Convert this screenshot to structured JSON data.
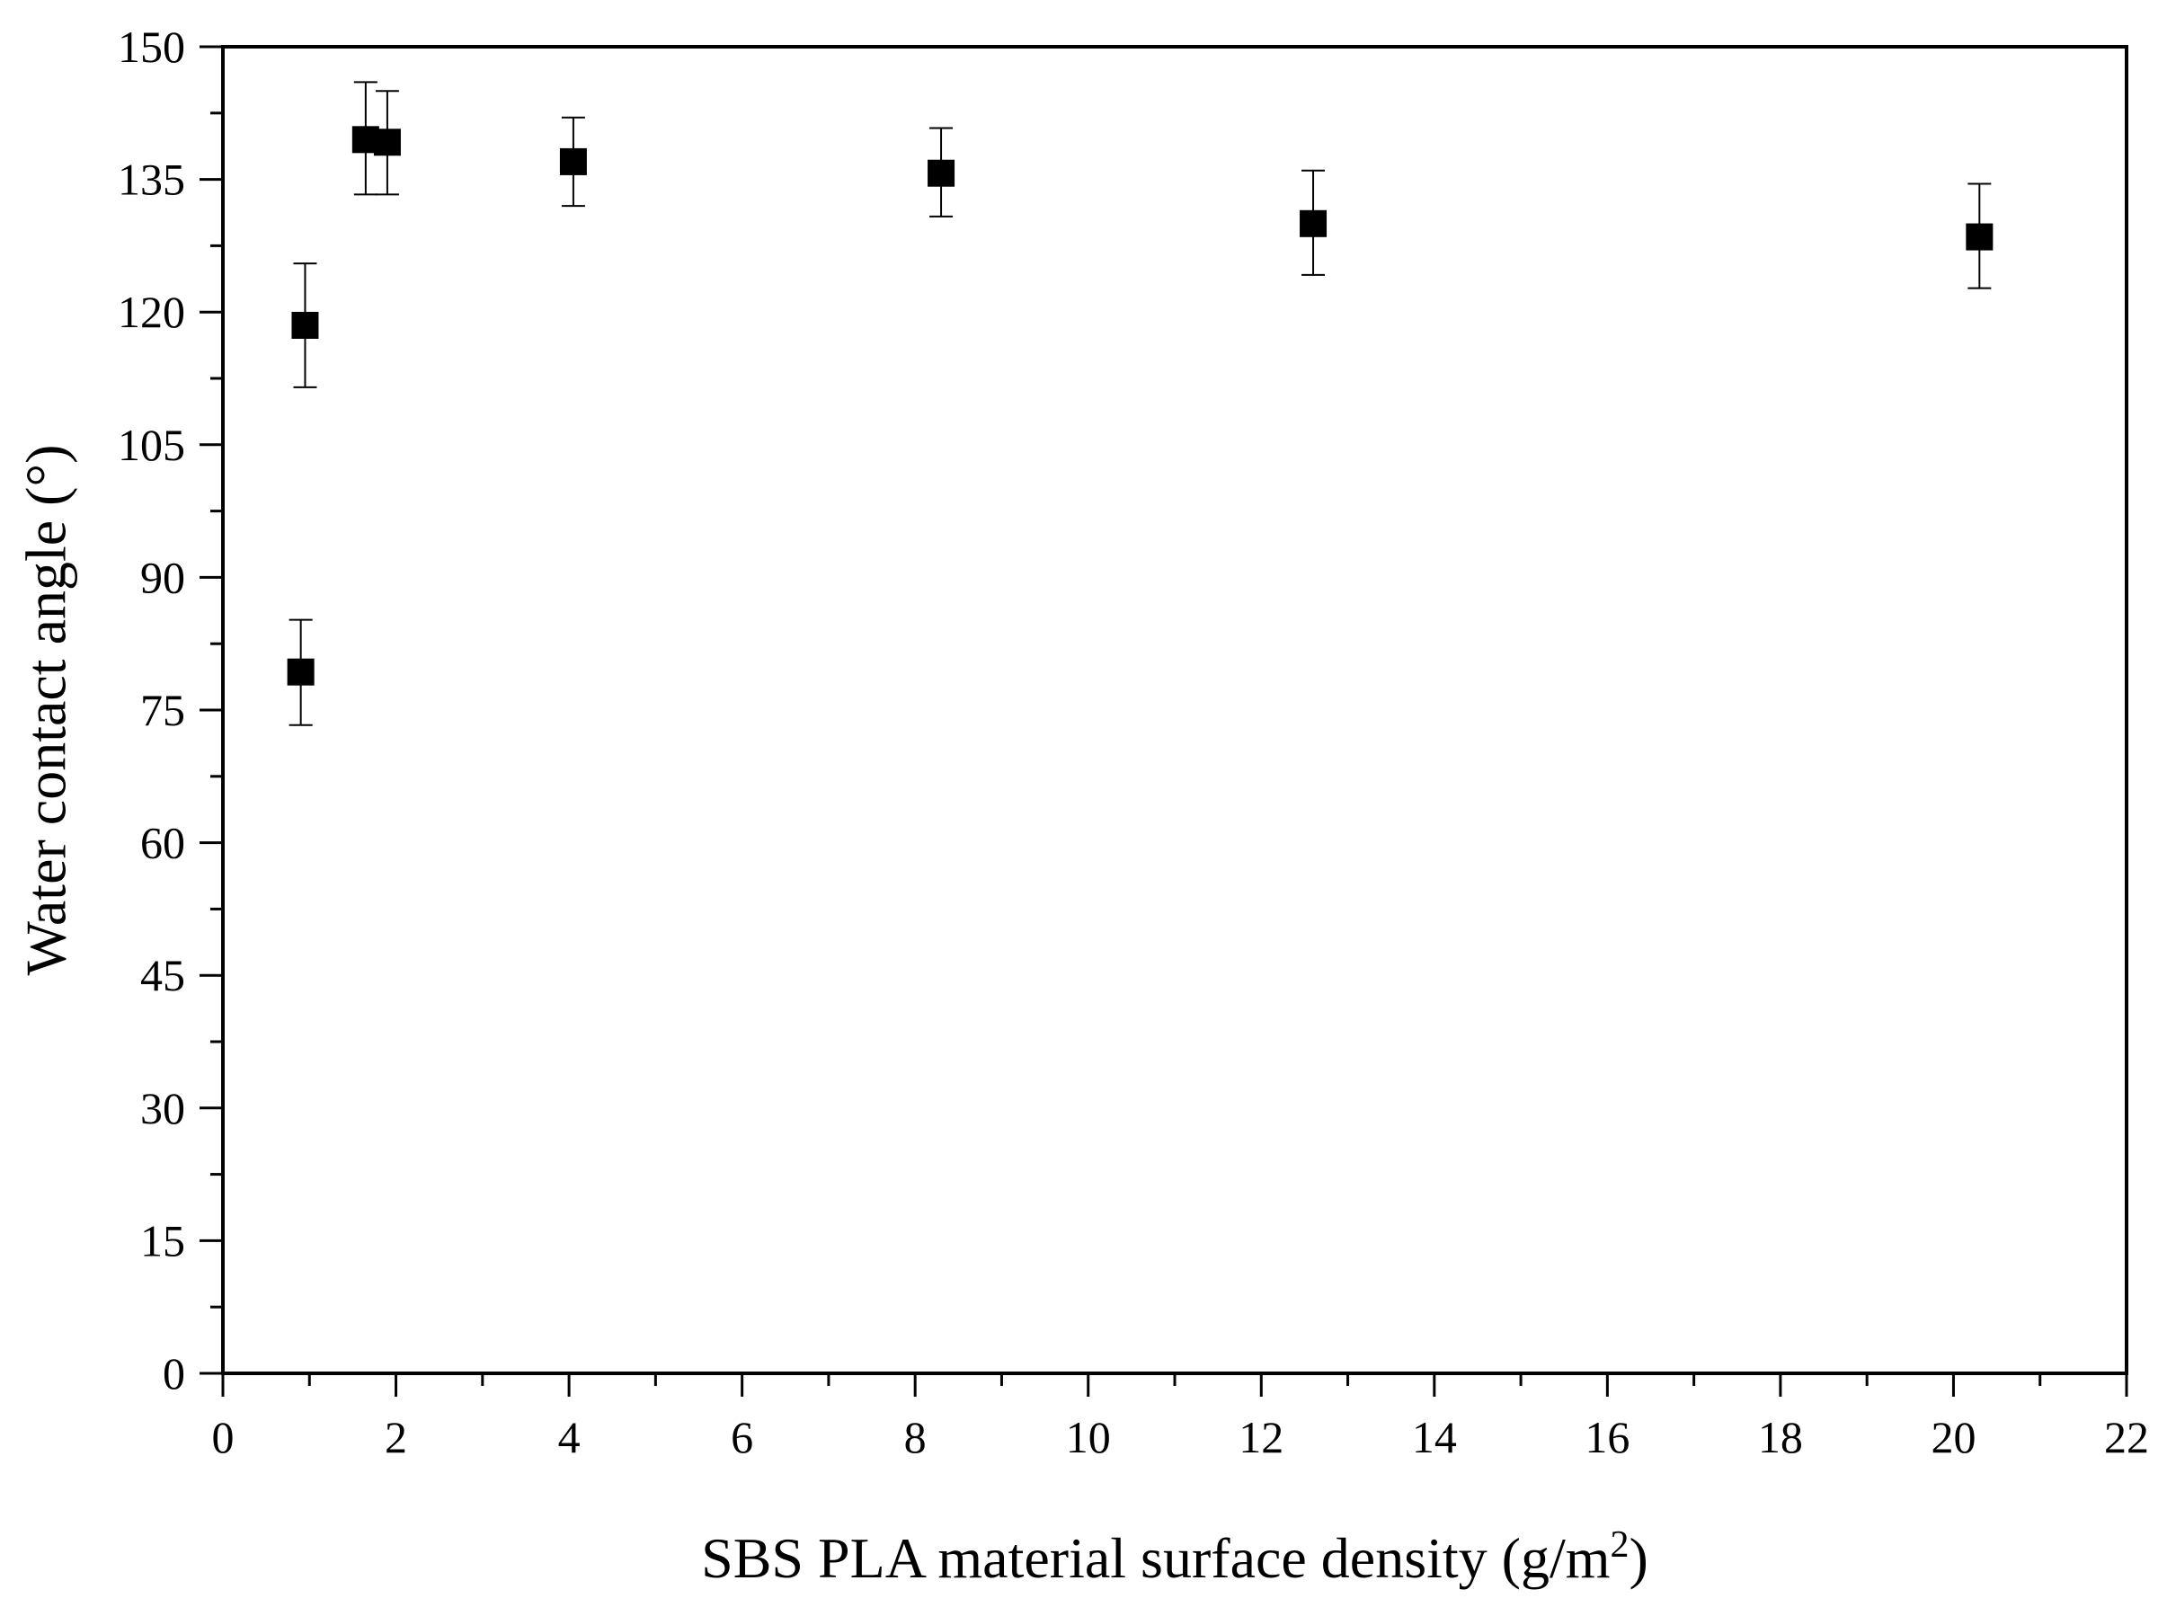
{
  "chart_data": {
    "type": "scatter",
    "title": "",
    "xlabel": "SBS PLA material surface density (g/m",
    "xlabel_superscript": "2",
    "xlabel_suffix": ")",
    "ylabel": "Water contact angle (°)",
    "xlim": [
      0,
      22
    ],
    "ylim": [
      0,
      150
    ],
    "x_ticks": [
      0,
      2,
      4,
      6,
      8,
      10,
      12,
      14,
      16,
      18,
      20,
      22
    ],
    "y_ticks": [
      0,
      15,
      30,
      45,
      60,
      75,
      90,
      105,
      120,
      135,
      150
    ],
    "x_tick_labels": [
      "0",
      "2",
      "4",
      "6",
      "8",
      "10",
      "12",
      "14",
      "16",
      "18",
      "20",
      "22"
    ],
    "y_tick_labels": [
      "0",
      "15",
      "30",
      "45",
      "60",
      "75",
      "90",
      "105",
      "120",
      "135",
      "150"
    ],
    "grid": false,
    "legend": false,
    "marker": "square",
    "marker_color": "#000000",
    "points": [
      {
        "x": 0.9,
        "y": 79.3,
        "err_low": 73.3,
        "err_high": 85.2
      },
      {
        "x": 0.95,
        "y": 118.5,
        "err_low": 111.5,
        "err_high": 125.5
      },
      {
        "x": 1.65,
        "y": 139.5,
        "err_low": 133.3,
        "err_high": 146.0
      },
      {
        "x": 1.9,
        "y": 139.2,
        "err_low": 133.3,
        "err_high": 145.0
      },
      {
        "x": 4.05,
        "y": 137.0,
        "err_low": 132.0,
        "err_high": 142.0
      },
      {
        "x": 8.3,
        "y": 135.7,
        "err_low": 130.8,
        "err_high": 140.8
      },
      {
        "x": 12.6,
        "y": 130.0,
        "err_low": 124.2,
        "err_high": 136.0
      },
      {
        "x": 20.3,
        "y": 128.5,
        "err_low": 122.7,
        "err_high": 134.5
      }
    ]
  }
}
